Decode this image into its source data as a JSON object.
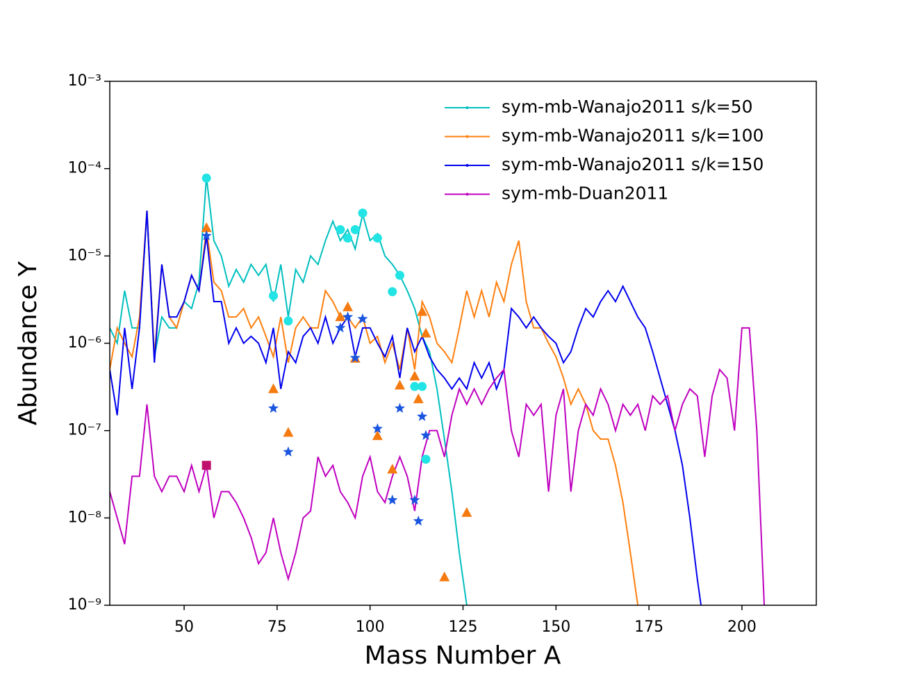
{
  "chart_data": {
    "type": "line",
    "xlabel": "Mass Number A",
    "ylabel": "Abundance Y",
    "xlim": [
      30,
      220
    ],
    "ylim": [
      1e-09,
      0.001
    ],
    "yscale": "log",
    "xticks": [
      50,
      75,
      100,
      125,
      150,
      175,
      200
    ],
    "yticks": [
      {
        "value": 1e-09,
        "label": "10⁻⁹"
      },
      {
        "value": 1e-08,
        "label": "10⁻⁸"
      },
      {
        "value": 1e-07,
        "label": "10⁻⁷"
      },
      {
        "value": 1e-06,
        "label": "10⁻⁶"
      },
      {
        "value": 1e-05,
        "label": "10⁻⁵"
      },
      {
        "value": 0.0001,
        "label": "10⁻⁴"
      },
      {
        "value": 0.001,
        "label": "10⁻³"
      }
    ],
    "legend": "upper right",
    "series": [
      {
        "name": "sym-mb-Wanajo2011 s/k=50",
        "type": "line",
        "color": "#00bfbf",
        "x": [
          30,
          32,
          34,
          36,
          38,
          40,
          42,
          44,
          46,
          48,
          50,
          52,
          54,
          56,
          58,
          60,
          62,
          64,
          66,
          68,
          70,
          72,
          74,
          76,
          78,
          80,
          82,
          84,
          86,
          88,
          90,
          92,
          94,
          96,
          98,
          100,
          102,
          104,
          106,
          108,
          110,
          112,
          114,
          116,
          118,
          120,
          122,
          124,
          126
        ],
        "values": [
          1.5e-06,
          1e-06,
          4e-06,
          1.5e-06,
          1.5e-06,
          3.3e-05,
          7e-07,
          2e-06,
          1.5e-06,
          1.5e-06,
          3e-06,
          2.5e-06,
          5e-06,
          8e-05,
          1.5e-05,
          1e-05,
          4.5e-06,
          7e-06,
          5e-06,
          8e-06,
          6e-06,
          8e-06,
          3e-06,
          8e-06,
          2e-06,
          7e-06,
          5e-06,
          1e-05,
          8e-06,
          1.5e-05,
          2.5e-05,
          1.5e-05,
          2e-05,
          1.2e-05,
          3e-05,
          1.5e-05,
          1.8e-05,
          1e-05,
          8e-06,
          6e-06,
          4e-06,
          2.5e-06,
          1.2e-06,
          8e-07,
          3e-07,
          8e-08,
          2e-08,
          4e-09,
          1e-09
        ]
      },
      {
        "name": "sym-mb-Wanajo2011 s/k=100",
        "type": "line",
        "color": "#ff7f0e",
        "x": [
          30,
          32,
          34,
          36,
          38,
          40,
          42,
          44,
          46,
          48,
          50,
          52,
          54,
          56,
          58,
          60,
          62,
          64,
          66,
          68,
          70,
          72,
          74,
          76,
          78,
          80,
          82,
          84,
          86,
          88,
          90,
          92,
          94,
          96,
          98,
          100,
          102,
          104,
          106,
          108,
          110,
          112,
          114,
          116,
          118,
          120,
          122,
          124,
          126,
          128,
          130,
          132,
          134,
          136,
          138,
          140,
          142,
          144,
          146,
          148,
          150,
          152,
          154,
          156,
          158,
          160,
          162,
          164,
          166,
          168,
          170,
          172
        ],
        "values": [
          5e-07,
          1.5e-06,
          1e-06,
          7e-07,
          2e-06,
          3.3e-05,
          7e-07,
          8e-06,
          2e-06,
          1.5e-06,
          3e-06,
          6e-06,
          4e-06,
          2e-05,
          5e-06,
          4e-06,
          2e-06,
          2e-06,
          2.5e-06,
          1.5e-06,
          2e-06,
          1.2e-06,
          7e-07,
          2e-06,
          6e-07,
          1.5e-06,
          2e-06,
          1.5e-06,
          1.5e-06,
          4e-06,
          3e-06,
          2e-06,
          2e-06,
          1.5e-06,
          2e-06,
          1e-06,
          1.2e-06,
          6e-07,
          1e-06,
          5e-07,
          1.5e-06,
          5e-07,
          3e-06,
          2e-06,
          1e-06,
          8e-07,
          6e-07,
          1.5e-06,
          4e-06,
          2e-06,
          4e-06,
          2e-06,
          5e-06,
          3e-06,
          8e-06,
          1.5e-05,
          3e-06,
          1.5e-06,
          1.5e-06,
          1e-06,
          7e-07,
          4e-07,
          2e-07,
          3e-07,
          2e-07,
          1e-07,
          8e-08,
          8e-08,
          4e-08,
          1.5e-08,
          4e-09,
          1e-09
        ]
      },
      {
        "name": "sym-mb-Wanajo2011 s/k=150",
        "type": "line",
        "color": "#0000ee",
        "x": [
          30,
          32,
          34,
          36,
          38,
          40,
          42,
          44,
          46,
          48,
          50,
          52,
          54,
          56,
          58,
          60,
          62,
          64,
          66,
          68,
          70,
          72,
          74,
          76,
          78,
          80,
          82,
          84,
          86,
          88,
          90,
          92,
          94,
          96,
          98,
          100,
          102,
          104,
          106,
          108,
          110,
          112,
          114,
          116,
          118,
          120,
          122,
          124,
          126,
          128,
          130,
          132,
          134,
          136,
          138,
          140,
          142,
          144,
          146,
          148,
          150,
          152,
          154,
          156,
          158,
          160,
          162,
          164,
          166,
          168,
          170,
          172,
          174,
          176,
          178,
          180,
          182,
          184,
          186,
          188,
          189
        ],
        "values": [
          5e-07,
          1.5e-07,
          1.5e-06,
          3e-07,
          1.5e-06,
          3.3e-05,
          6e-07,
          8e-06,
          2e-06,
          2e-06,
          3e-06,
          6e-06,
          4e-06,
          1.7e-05,
          3e-06,
          3e-06,
          1e-06,
          1.5e-06,
          1e-06,
          1.2e-06,
          1e-06,
          6e-07,
          1.5e-06,
          3e-07,
          8e-07,
          6e-07,
          1.2e-06,
          1.5e-06,
          1e-06,
          2e-06,
          1e-06,
          1.5e-06,
          2e-06,
          7e-07,
          1.5e-06,
          1.5e-06,
          1e-06,
          7e-07,
          1.2e-06,
          4e-07,
          1.5e-06,
          8e-07,
          1.2e-06,
          7e-07,
          5e-07,
          4e-07,
          3e-07,
          4e-07,
          3e-07,
          6e-07,
          4e-07,
          6e-07,
          3e-07,
          5e-07,
          2.5e-06,
          2e-06,
          1.5e-06,
          2e-06,
          1.5e-06,
          1.2e-06,
          1e-06,
          6e-07,
          8e-07,
          1.5e-06,
          2.5e-06,
          2e-06,
          3e-06,
          4e-06,
          3e-06,
          4.5e-06,
          3e-06,
          2e-06,
          1.5e-06,
          8e-07,
          4e-07,
          2e-07,
          1e-07,
          4e-08,
          1e-08,
          2e-09,
          1e-09
        ]
      },
      {
        "name": "sym-mb-Duan2011",
        "type": "line",
        "color": "#bf00bf",
        "x": [
          30,
          32,
          34,
          36,
          38,
          40,
          42,
          44,
          46,
          48,
          50,
          52,
          54,
          56,
          58,
          60,
          62,
          64,
          66,
          68,
          70,
          72,
          74,
          76,
          78,
          80,
          82,
          84,
          86,
          88,
          90,
          92,
          94,
          96,
          98,
          100,
          102,
          104,
          106,
          108,
          110,
          112,
          114,
          116,
          118,
          120,
          122,
          124,
          126,
          128,
          130,
          132,
          134,
          136,
          138,
          140,
          142,
          144,
          146,
          148,
          150,
          152,
          154,
          156,
          158,
          160,
          162,
          164,
          166,
          168,
          170,
          172,
          174,
          176,
          178,
          180,
          182,
          184,
          186,
          188,
          190,
          192,
          194,
          196,
          198,
          200,
          202,
          204,
          206
        ],
        "values": [
          2e-08,
          1e-08,
          5e-09,
          3e-08,
          3e-08,
          2e-07,
          3e-08,
          2e-08,
          3e-08,
          3e-08,
          2e-08,
          4e-08,
          2e-08,
          4e-08,
          1e-08,
          2e-08,
          2e-08,
          1.5e-08,
          1e-08,
          6e-09,
          3e-09,
          4e-09,
          1e-08,
          4e-09,
          2e-09,
          4e-09,
          1e-08,
          1.2e-08,
          5e-08,
          3e-08,
          4e-08,
          2e-08,
          1.5e-08,
          1e-08,
          3e-08,
          5e-08,
          2e-08,
          1.5e-08,
          3e-08,
          5e-08,
          3e-08,
          1.2e-08,
          5e-08,
          1e-07,
          1e-07,
          5e-08,
          1.5e-07,
          3e-07,
          2e-07,
          3e-07,
          2e-07,
          3e-07,
          4e-07,
          5e-07,
          1e-07,
          5e-08,
          2e-07,
          1.5e-07,
          2e-07,
          2e-08,
          1.5e-07,
          3e-07,
          2e-08,
          1e-07,
          2e-07,
          1.5e-07,
          3e-07,
          2e-07,
          1e-07,
          2e-07,
          1.5e-07,
          2e-07,
          1e-07,
          2.5e-07,
          2e-07,
          2.5e-07,
          1e-07,
          2e-07,
          3e-07,
          2.5e-07,
          5e-08,
          2.5e-07,
          5e-07,
          4e-07,
          1e-07,
          1.5e-06,
          1.5e-06,
          1e-07,
          1e-09
        ]
      },
      {
        "type": "scatter",
        "marker": "circle",
        "color": "#22e4e4",
        "x": [
          56,
          74,
          78,
          92,
          94,
          96,
          98,
          102,
          106,
          108,
          112,
          114,
          115
        ],
        "values": [
          7.8e-05,
          3.5e-06,
          1.8e-06,
          2e-05,
          1.6e-05,
          2e-05,
          3.1e-05,
          1.6e-05,
          3.9e-06,
          6e-06,
          3.2e-07,
          3.2e-07,
          4.7e-08
        ]
      },
      {
        "type": "scatter",
        "marker": "triangle",
        "color": "#f57a10",
        "x": [
          56,
          74,
          78,
          92,
          94,
          96,
          102,
          106,
          108,
          112,
          113,
          114,
          115,
          120,
          126
        ],
        "values": [
          2.1e-05,
          3e-07,
          9.5e-08,
          2e-06,
          2.6e-06,
          6.7e-07,
          8.7e-08,
          3.6e-08,
          3.3e-07,
          4.2e-07,
          2.3e-07,
          2.3e-06,
          1.3e-06,
          2.1e-09,
          1.15e-08
        ]
      },
      {
        "type": "scatter",
        "marker": "star",
        "color": "#1a55e0",
        "x": [
          56,
          74,
          78,
          92,
          94,
          96,
          98,
          102,
          106,
          108,
          112,
          113,
          114,
          115
        ],
        "values": [
          1.7e-05,
          1.8e-07,
          5.7e-08,
          1.5e-06,
          2e-06,
          6.8e-07,
          1.9e-06,
          1.05e-07,
          1.6e-08,
          1.8e-07,
          1.6e-08,
          9.2e-09,
          1.45e-07,
          8.8e-08
        ]
      },
      {
        "type": "scatter",
        "marker": "square",
        "color": "#c0106e",
        "x": [
          56
        ],
        "values": [
          4e-08
        ]
      }
    ]
  }
}
